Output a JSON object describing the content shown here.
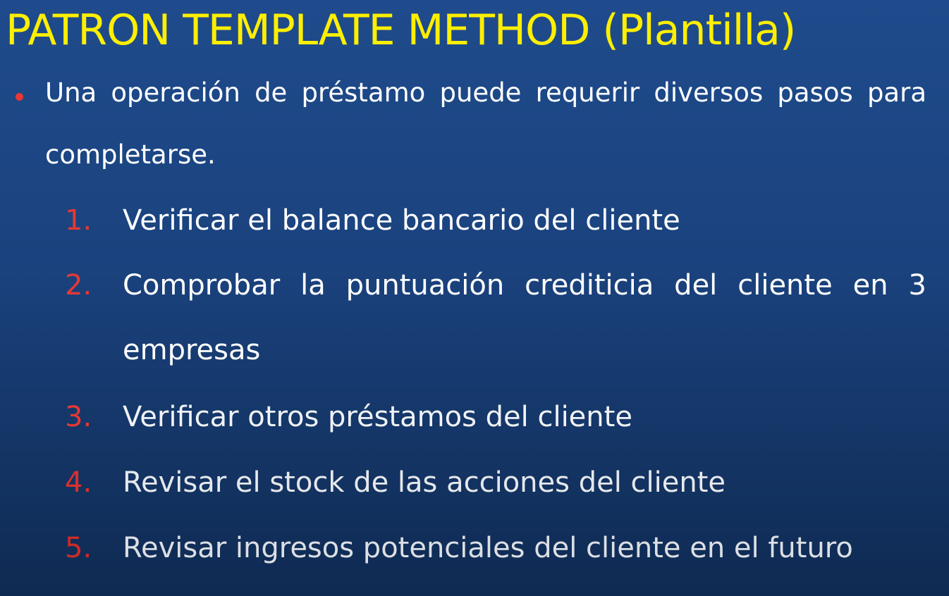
{
  "slide": {
    "title": "PATRON TEMPLATE METHOD (Plantilla)",
    "bullet": {
      "text": "Una operación de préstamo puede requerir diversos pasos para completarse."
    },
    "steps": [
      {
        "number": "1.",
        "text": "Verificar el balance bancario del cliente"
      },
      {
        "number": "2.",
        "text": "Comprobar la puntuación crediticia del cliente en 3 empresas"
      },
      {
        "number": "3.",
        "text": "Verificar otros préstamos del cliente"
      },
      {
        "number": "4.",
        "text": "Revisar el stock de las acciones del cliente"
      },
      {
        "number": "5.",
        "text": "Revisar ingresos potenciales del cliente en el futuro"
      }
    ],
    "colors": {
      "background": "#1f4b8c",
      "title": "#ffef00",
      "bullet": "#e53935",
      "numbers": "#e53935",
      "text": "#ffffff"
    }
  }
}
